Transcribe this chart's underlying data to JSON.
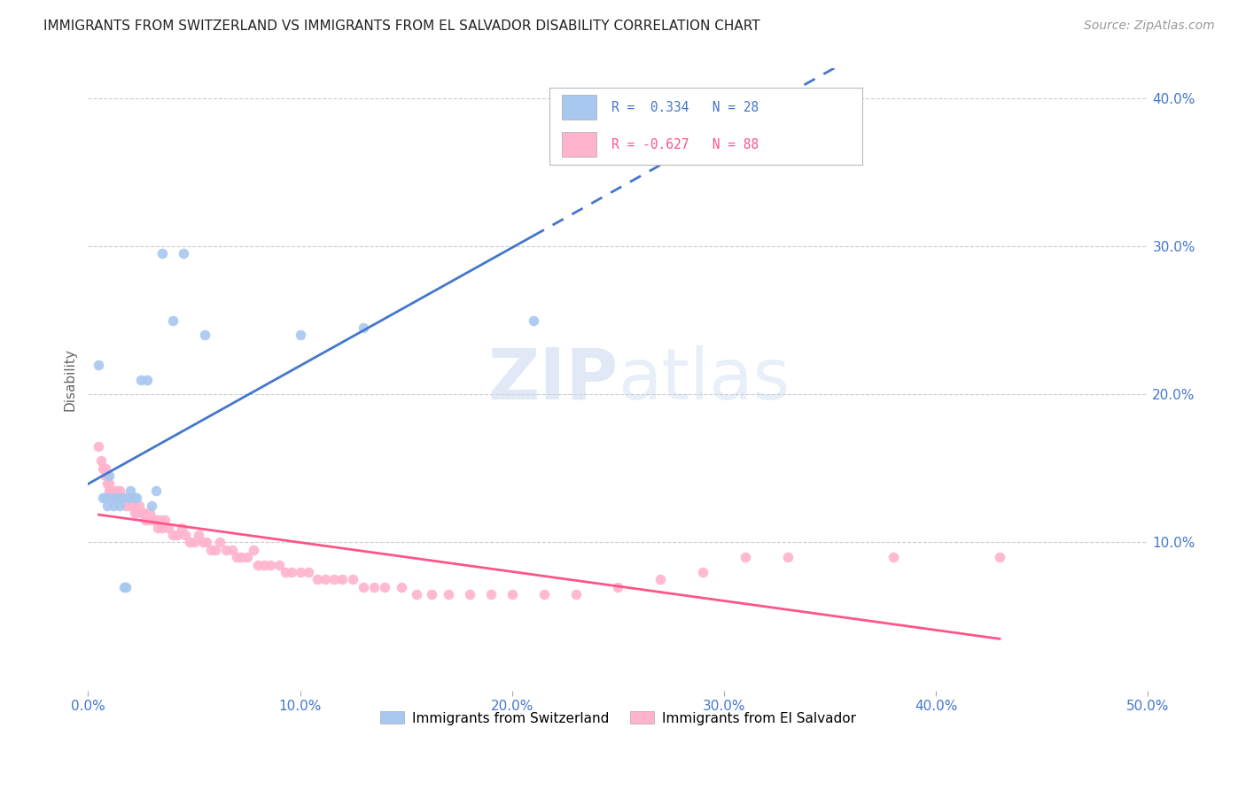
{
  "title": "IMMIGRANTS FROM SWITZERLAND VS IMMIGRANTS FROM EL SALVADOR DISABILITY CORRELATION CHART",
  "source": "Source: ZipAtlas.com",
  "ylabel_label": "Disability",
  "xlim": [
    0.0,
    0.5
  ],
  "ylim": [
    0.0,
    0.42
  ],
  "swiss_color": "#a8c8f0",
  "salvador_color": "#ffb3cc",
  "swiss_line_color": "#4477cc",
  "salvador_line_color": "#ff5588",
  "R_swiss": 0.334,
  "N_swiss": 28,
  "R_salvador": -0.627,
  "N_salvador": 88,
  "watermark_zip": "ZIP",
  "watermark_atlas": "atlas",
  "legend_labels": [
    "Immigrants from Switzerland",
    "Immigrants from El Salvador"
  ],
  "swiss_x": [
    0.005,
    0.007,
    0.008,
    0.009,
    0.01,
    0.01,
    0.012,
    0.013,
    0.015,
    0.015,
    0.016,
    0.017,
    0.018,
    0.019,
    0.02,
    0.022,
    0.023,
    0.025,
    0.028,
    0.03,
    0.032,
    0.035,
    0.04,
    0.045,
    0.055,
    0.1,
    0.13,
    0.21
  ],
  "swiss_y": [
    0.22,
    0.13,
    0.13,
    0.125,
    0.13,
    0.145,
    0.125,
    0.13,
    0.125,
    0.13,
    0.13,
    0.07,
    0.07,
    0.13,
    0.135,
    0.13,
    0.13,
    0.21,
    0.21,
    0.125,
    0.135,
    0.295,
    0.25,
    0.295,
    0.24,
    0.24,
    0.245,
    0.25
  ],
  "salvador_x": [
    0.005,
    0.006,
    0.007,
    0.008,
    0.008,
    0.009,
    0.009,
    0.01,
    0.01,
    0.011,
    0.012,
    0.013,
    0.013,
    0.014,
    0.015,
    0.015,
    0.016,
    0.017,
    0.018,
    0.019,
    0.02,
    0.021,
    0.022,
    0.023,
    0.024,
    0.025,
    0.026,
    0.027,
    0.028,
    0.029,
    0.03,
    0.031,
    0.032,
    0.033,
    0.034,
    0.035,
    0.036,
    0.038,
    0.04,
    0.042,
    0.044,
    0.046,
    0.048,
    0.05,
    0.052,
    0.054,
    0.056,
    0.058,
    0.06,
    0.062,
    0.065,
    0.068,
    0.07,
    0.072,
    0.075,
    0.078,
    0.08,
    0.083,
    0.086,
    0.09,
    0.093,
    0.096,
    0.1,
    0.104,
    0.108,
    0.112,
    0.116,
    0.12,
    0.125,
    0.13,
    0.135,
    0.14,
    0.148,
    0.155,
    0.162,
    0.17,
    0.18,
    0.19,
    0.2,
    0.215,
    0.23,
    0.25,
    0.27,
    0.29,
    0.31,
    0.33,
    0.38,
    0.43
  ],
  "salvador_y": [
    0.165,
    0.155,
    0.15,
    0.15,
    0.145,
    0.145,
    0.14,
    0.14,
    0.135,
    0.135,
    0.13,
    0.13,
    0.135,
    0.13,
    0.13,
    0.135,
    0.13,
    0.13,
    0.125,
    0.13,
    0.125,
    0.125,
    0.12,
    0.12,
    0.125,
    0.12,
    0.12,
    0.115,
    0.115,
    0.12,
    0.115,
    0.115,
    0.115,
    0.11,
    0.115,
    0.11,
    0.115,
    0.11,
    0.105,
    0.105,
    0.11,
    0.105,
    0.1,
    0.1,
    0.105,
    0.1,
    0.1,
    0.095,
    0.095,
    0.1,
    0.095,
    0.095,
    0.09,
    0.09,
    0.09,
    0.095,
    0.085,
    0.085,
    0.085,
    0.085,
    0.08,
    0.08,
    0.08,
    0.08,
    0.075,
    0.075,
    0.075,
    0.075,
    0.075,
    0.07,
    0.07,
    0.07,
    0.07,
    0.065,
    0.065,
    0.065,
    0.065,
    0.065,
    0.065,
    0.065,
    0.065,
    0.07,
    0.075,
    0.08,
    0.09,
    0.09,
    0.09,
    0.09
  ]
}
